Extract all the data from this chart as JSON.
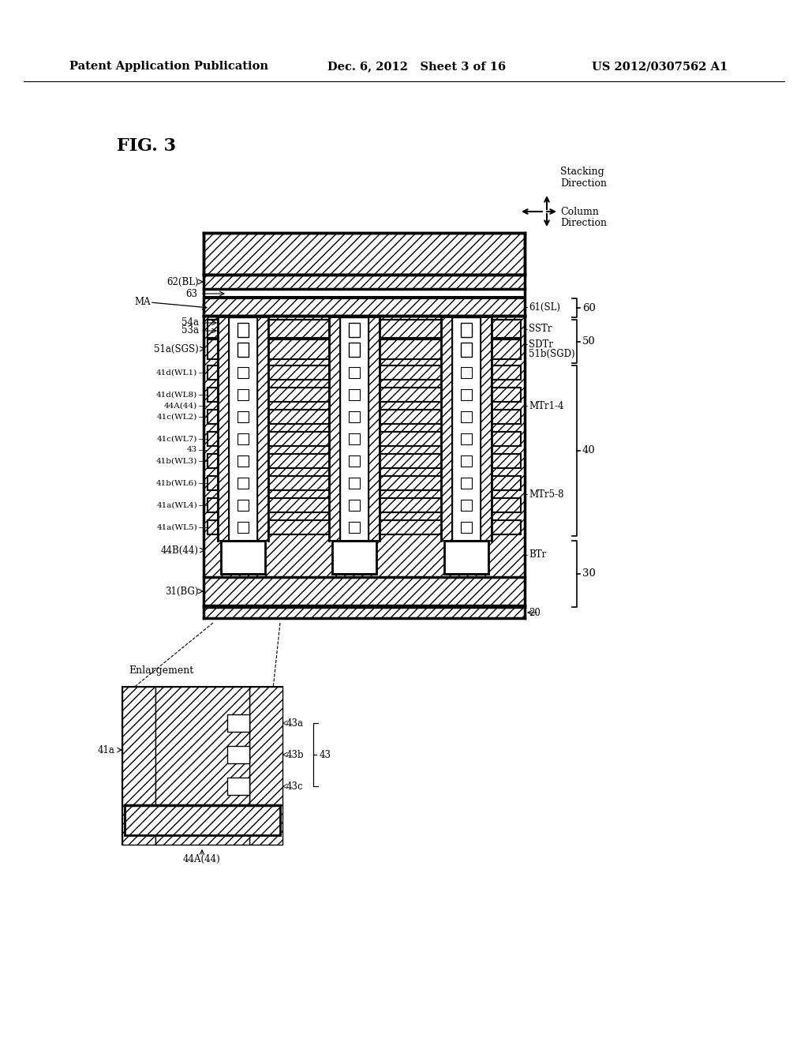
{
  "title_left": "Patent Application Publication",
  "title_mid": "Dec. 6, 2012   Sheet 3 of 16",
  "title_right": "US 2012/0307562 A1",
  "fig_label": "FIG. 3",
  "bg_color": "#ffffff"
}
